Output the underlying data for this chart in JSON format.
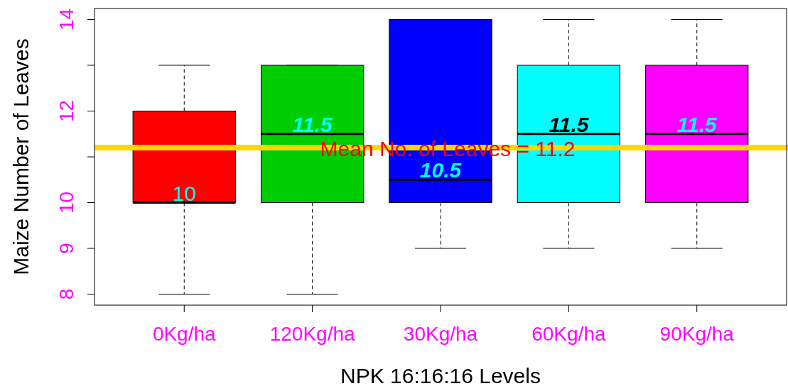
{
  "chart_data": {
    "type": "box",
    "xlabel": "NPK 16:16:16 Levels",
    "ylabel": "Maize Number of Leaves",
    "categories": [
      "0Kg/ha",
      "120Kg/ha",
      "30Kg/ha",
      "60Kg/ha",
      "90Kg/ha"
    ],
    "colors": [
      "#ff0000",
      "#00cd00",
      "#0000ff",
      "#00ffff",
      "#ff00ff"
    ],
    "boxes": [
      {
        "low": 8,
        "q1": 10,
        "median": 10,
        "q3": 12,
        "high": 13
      },
      {
        "low": 8,
        "q1": 10,
        "median": 11.5,
        "q3": 13,
        "high": 13
      },
      {
        "low": 9,
        "q1": 10,
        "median": 10.5,
        "q3": 14,
        "high": 14
      },
      {
        "low": 9,
        "q1": 10,
        "median": 11.5,
        "q3": 13,
        "high": 14
      },
      {
        "low": 9,
        "q1": 10,
        "median": 11.5,
        "q3": 13,
        "high": 14
      }
    ],
    "annotations": [
      {
        "text": "10",
        "x": "0Kg/ha",
        "y": 10
      },
      {
        "text": "11.5",
        "x": "120Kg/ha",
        "y": 11.5
      },
      {
        "text": "10.5",
        "x": "30Kg/ha",
        "y": 10.5
      },
      {
        "text": "11.5",
        "x": "60Kg/ha",
        "y": 11.5
      },
      {
        "text": "11.5",
        "x": "90Kg/ha",
        "y": 11.5
      }
    ],
    "ylim": [
      7.76,
      14.24
    ],
    "yticks": [
      8,
      9,
      10,
      {
        "value": 11,
        "label": null
      },
      12,
      {
        "value": 13,
        "label": null
      },
      14
    ],
    "ref_lines": [
      {
        "axis": "y",
        "value": 11.2,
        "label": "Mean No. of Leaves = 11.2",
        "color": "#ffd700"
      }
    ]
  }
}
